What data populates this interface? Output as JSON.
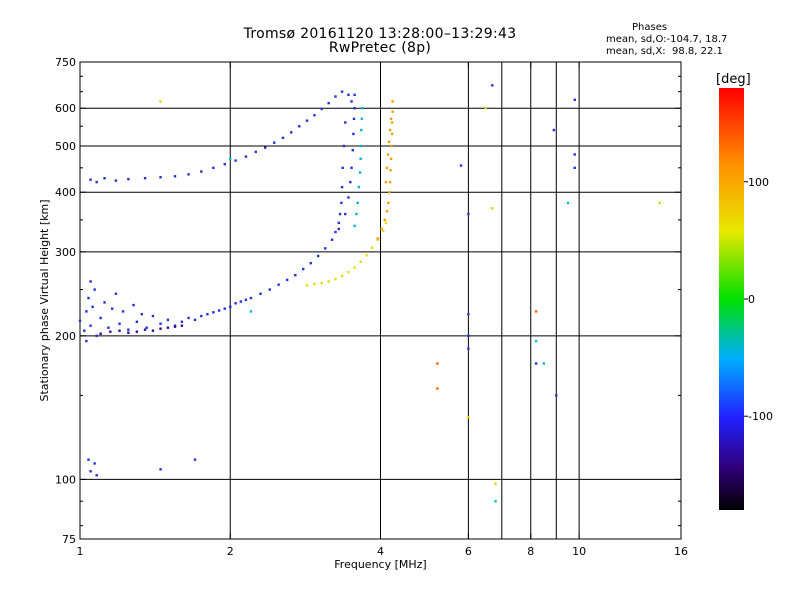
{
  "title": "Tromsø 20161120 13:28:00–13:29:43",
  "subtitle": "RwPretec (8p)",
  "phase_stats": {
    "heading": "Phases",
    "line_o": "mean, sd,O:-104.7, 18.7",
    "line_x": "mean, sd,X:  98.8, 22.1"
  },
  "colorbar": {
    "unit": "[deg]",
    "ticks": [
      {
        "value": 100,
        "label": "100"
      },
      {
        "value": 0,
        "label": "0"
      },
      {
        "value": -100,
        "label": "-100"
      }
    ],
    "range": [
      -180,
      180
    ]
  },
  "chart_data": {
    "type": "scatter",
    "xlabel": "Frequency [MHz]",
    "ylabel": "Stationary phase Virtual Height [km]",
    "xscale": "log",
    "yscale": "log",
    "xlim": [
      1,
      16
    ],
    "ylim": [
      75,
      750
    ],
    "xticks": [
      {
        "value": 1,
        "label": "1"
      },
      {
        "value": 2,
        "label": "2"
      },
      {
        "value": 4,
        "label": "4"
      },
      {
        "value": 6,
        "label": "6"
      },
      {
        "value": 8,
        "label": "8"
      },
      {
        "value": 10,
        "label": "10"
      },
      {
        "value": 16,
        "label": "16"
      }
    ],
    "xgrid": [
      2,
      4,
      6,
      7,
      8,
      9,
      10
    ],
    "yticks": [
      {
        "value": 75,
        "label": "75"
      },
      {
        "value": 100,
        "label": "100"
      },
      {
        "value": 200,
        "label": "200"
      },
      {
        "value": 300,
        "label": "300"
      },
      {
        "value": 400,
        "label": "400"
      },
      {
        "value": 500,
        "label": "500"
      },
      {
        "value": 600,
        "label": "600"
      },
      {
        "value": 750,
        "label": "750"
      }
    ],
    "ygrid": [
      100,
      200,
      300,
      400,
      500,
      600
    ],
    "grid": true,
    "series": [
      {
        "role": "o-trace-lower",
        "color": "#1f33d9",
        "points": [
          [
            1.0,
            215
          ],
          [
            1.02,
            205
          ],
          [
            1.03,
            225
          ],
          [
            1.04,
            240
          ],
          [
            1.05,
            210
          ],
          [
            1.06,
            230
          ],
          [
            1.07,
            250
          ],
          [
            1.08,
            200
          ],
          [
            1.1,
            218
          ],
          [
            1.12,
            235
          ],
          [
            1.14,
            208
          ],
          [
            1.16,
            228
          ],
          [
            1.18,
            245
          ],
          [
            1.2,
            212
          ],
          [
            1.22,
            225
          ],
          [
            1.25,
            206
          ],
          [
            1.28,
            232
          ],
          [
            1.3,
            214
          ],
          [
            1.33,
            222
          ],
          [
            1.36,
            208
          ],
          [
            1.4,
            220
          ],
          [
            1.45,
            212
          ],
          [
            1.5,
            216
          ],
          [
            1.55,
            210
          ],
          [
            1.6,
            214
          ],
          [
            1.65,
            218
          ],
          [
            1.7,
            216
          ],
          [
            1.75,
            220
          ],
          [
            1.8,
            222
          ],
          [
            1.85,
            224
          ],
          [
            1.9,
            226
          ],
          [
            1.95,
            228
          ],
          [
            2.0,
            230
          ],
          [
            2.05,
            234
          ],
          [
            2.1,
            236
          ],
          [
            2.15,
            238
          ],
          [
            2.2,
            240
          ],
          [
            2.3,
            245
          ],
          [
            2.4,
            250
          ],
          [
            2.5,
            256
          ],
          [
            2.6,
            262
          ],
          [
            2.7,
            268
          ],
          [
            2.8,
            276
          ],
          [
            2.9,
            284
          ],
          [
            3.0,
            294
          ],
          [
            3.1,
            305
          ],
          [
            3.2,
            318
          ],
          [
            3.3,
            335
          ],
          [
            3.4,
            360
          ],
          [
            3.45,
            390
          ],
          [
            3.48,
            420
          ],
          [
            3.5,
            450
          ],
          [
            3.52,
            490
          ],
          [
            3.53,
            530
          ],
          [
            3.54,
            570
          ],
          [
            3.55,
            600
          ],
          [
            3.55,
            640
          ],
          [
            3.5,
            620
          ],
          [
            1.03,
            195
          ],
          [
            1.05,
            260
          ]
        ]
      },
      {
        "role": "o-trace-lower-purple",
        "color": "#3a0a8a",
        "points": [
          [
            1.2,
            205
          ],
          [
            1.25,
            203
          ],
          [
            1.3,
            204
          ],
          [
            1.35,
            206
          ],
          [
            1.4,
            205
          ],
          [
            1.45,
            207
          ],
          [
            1.5,
            208
          ],
          [
            1.55,
            209
          ],
          [
            1.6,
            210
          ],
          [
            1.1,
            202
          ],
          [
            1.15,
            204
          ]
        ]
      },
      {
        "role": "o-trace-upper",
        "color": "#2a30c8",
        "points": [
          [
            1.05,
            425
          ],
          [
            1.08,
            420
          ],
          [
            1.12,
            428
          ],
          [
            1.18,
            423
          ],
          [
            1.25,
            426
          ],
          [
            1.35,
            428
          ],
          [
            1.45,
            430
          ],
          [
            1.55,
            432
          ],
          [
            1.65,
            436
          ],
          [
            1.75,
            442
          ],
          [
            1.85,
            450
          ],
          [
            1.95,
            458
          ],
          [
            2.05,
            466
          ],
          [
            2.15,
            475
          ],
          [
            2.25,
            486
          ],
          [
            2.35,
            496
          ],
          [
            2.45,
            508
          ],
          [
            2.55,
            520
          ],
          [
            2.65,
            534
          ],
          [
            2.75,
            550
          ],
          [
            2.85,
            565
          ],
          [
            2.95,
            580
          ],
          [
            3.05,
            598
          ],
          [
            3.15,
            615
          ],
          [
            3.25,
            635
          ],
          [
            3.35,
            650
          ],
          [
            3.45,
            640
          ],
          [
            3.4,
            560
          ],
          [
            3.38,
            500
          ],
          [
            3.36,
            450
          ],
          [
            3.35,
            410
          ],
          [
            3.34,
            380
          ],
          [
            3.32,
            360
          ],
          [
            3.3,
            345
          ],
          [
            3.25,
            330
          ]
        ]
      },
      {
        "role": "x-trace-lower",
        "color": "#e0e010",
        "points": [
          [
            2.85,
            255
          ],
          [
            2.95,
            257
          ],
          [
            3.05,
            258
          ],
          [
            3.15,
            260
          ],
          [
            3.25,
            263
          ],
          [
            3.35,
            267
          ],
          [
            3.45,
            272
          ],
          [
            3.55,
            278
          ],
          [
            3.65,
            286
          ],
          [
            3.75,
            295
          ],
          [
            3.85,
            306
          ],
          [
            3.95,
            318
          ],
          [
            4.05,
            332
          ],
          [
            4.1,
            345
          ]
        ]
      },
      {
        "role": "x-trace-upper",
        "color": "#f0a000",
        "points": [
          [
            3.95,
            320
          ],
          [
            4.02,
            335
          ],
          [
            4.08,
            350
          ],
          [
            4.12,
            365
          ],
          [
            4.15,
            380
          ],
          [
            4.17,
            400
          ],
          [
            4.18,
            420
          ],
          [
            4.19,
            445
          ],
          [
            4.2,
            470
          ],
          [
            4.21,
            500
          ],
          [
            4.22,
            530
          ],
          [
            4.22,
            560
          ],
          [
            4.23,
            590
          ],
          [
            4.23,
            620
          ],
          [
            4.1,
            420
          ],
          [
            4.12,
            450
          ],
          [
            4.14,
            480
          ],
          [
            4.16,
            510
          ],
          [
            4.18,
            540
          ],
          [
            4.2,
            570
          ]
        ]
      },
      {
        "role": "o-trace-cyan",
        "color": "#00b4d8",
        "points": [
          [
            3.55,
            340
          ],
          [
            3.58,
            360
          ],
          [
            3.6,
            380
          ],
          [
            3.62,
            410
          ],
          [
            3.64,
            440
          ],
          [
            3.65,
            470
          ],
          [
            3.66,
            500
          ],
          [
            3.66,
            540
          ],
          [
            3.67,
            570
          ],
          [
            3.68,
            600
          ]
        ]
      },
      {
        "role": "scattered",
        "color": "#1f33d9",
        "points": [
          [
            1.05,
            104
          ],
          [
            1.07,
            108
          ],
          [
            1.08,
            102
          ],
          [
            1.04,
            110
          ],
          [
            1.45,
            105
          ],
          [
            1.7,
            110
          ],
          [
            6.7,
            670
          ],
          [
            8.9,
            540
          ],
          [
            9.8,
            625
          ],
          [
            9.8,
            480
          ],
          [
            9.8,
            450
          ],
          [
            6.0,
            360
          ],
          [
            6.0,
            222
          ],
          [
            6.0,
            200
          ],
          [
            6.0,
            188
          ],
          [
            5.8,
            455
          ],
          [
            8.2,
            175
          ],
          [
            9.0,
            150
          ]
        ]
      },
      {
        "role": "scattered-warm",
        "color": "#ff6000",
        "points": [
          [
            5.2,
            175
          ],
          [
            5.2,
            155
          ],
          [
            8.2,
            225
          ]
        ]
      },
      {
        "role": "scattered-yellow",
        "color": "#e8d000",
        "points": [
          [
            1.45,
            620
          ],
          [
            6.7,
            370
          ],
          [
            14.5,
            380
          ],
          [
            6.5,
            600
          ],
          [
            6.0,
            135
          ],
          [
            6.8,
            98
          ]
        ]
      },
      {
        "role": "scattered-cyan",
        "color": "#00c0c0",
        "points": [
          [
            9.5,
            380
          ],
          [
            6.8,
            90
          ],
          [
            8.5,
            175
          ],
          [
            8.2,
            195
          ],
          [
            2.0,
            470
          ],
          [
            2.2,
            225
          ]
        ]
      }
    ]
  }
}
